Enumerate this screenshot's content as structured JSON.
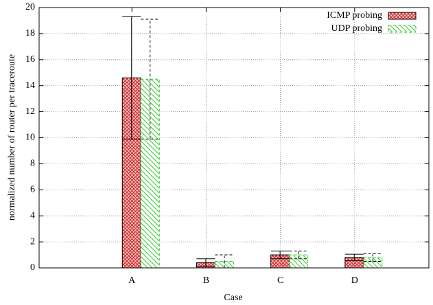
{
  "chart_data": {
    "type": "bar",
    "x_label": "Case",
    "y_label": "normalized number of router per traceroute",
    "categories": [
      "A",
      "B",
      "C",
      "D"
    ],
    "series": [
      {
        "name": "ICMP probing",
        "color": "#e03030",
        "values": [
          14.6,
          0.4,
          1.0,
          0.8
        ],
        "errors": [
          4.7,
          0.3,
          0.3,
          0.25
        ]
      },
      {
        "name": "UDP probing",
        "color": "#33cc33",
        "values": [
          14.5,
          0.5,
          1.0,
          0.8
        ],
        "errors": [
          4.6,
          0.5,
          0.3,
          0.3
        ]
      }
    ],
    "ylim": [
      0,
      20
    ],
    "yticks": [
      0,
      2,
      4,
      6,
      8,
      10,
      12,
      14,
      16,
      18,
      20
    ],
    "grid": true,
    "legend": "top-right"
  }
}
